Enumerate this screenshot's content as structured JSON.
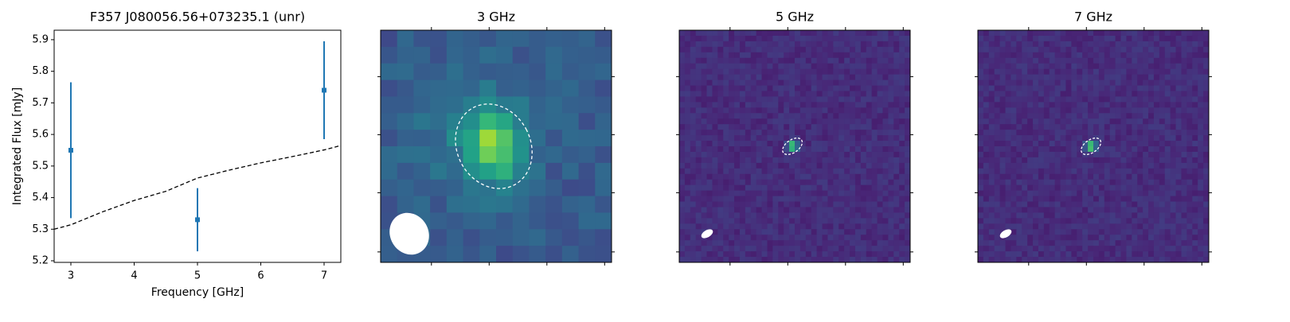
{
  "chart_data": [
    {
      "type": "errorbar",
      "title": "F357 J080056.56+073235.1 (unr)",
      "x_label": "Frequency [GHz]",
      "y_label": "Integrated Flux [mJy]",
      "xlim": [
        2.736,
        7.264
      ],
      "ylim": [
        5.195,
        5.93
      ],
      "xticks": [
        3,
        4,
        5,
        6,
        7
      ],
      "yticks": [
        5.2,
        5.3,
        5.4,
        5.5,
        5.6,
        5.7,
        5.8,
        5.9
      ],
      "series": [
        {
          "color": "#1f77b4",
          "x": [
            3,
            5,
            7
          ],
          "values": [
            5.55,
            5.33,
            5.74
          ],
          "errors": [
            0.215,
            0.1,
            0.155
          ]
        },
        {
          "color": "#000000",
          "linestyle": "dashed",
          "x": [
            2.736,
            3,
            3.5,
            4,
            4.5,
            5,
            5.5,
            6,
            6.5,
            7,
            7.264
          ],
          "values": [
            5.3,
            5.314,
            5.355,
            5.391,
            5.42,
            5.462,
            5.487,
            5.51,
            5.53,
            5.551,
            5.565
          ]
        }
      ]
    },
    {
      "type": "image",
      "title": "3 GHz"
    },
    {
      "type": "image",
      "title": "5 GHz"
    },
    {
      "type": "image",
      "title": "7 GHz"
    }
  ]
}
